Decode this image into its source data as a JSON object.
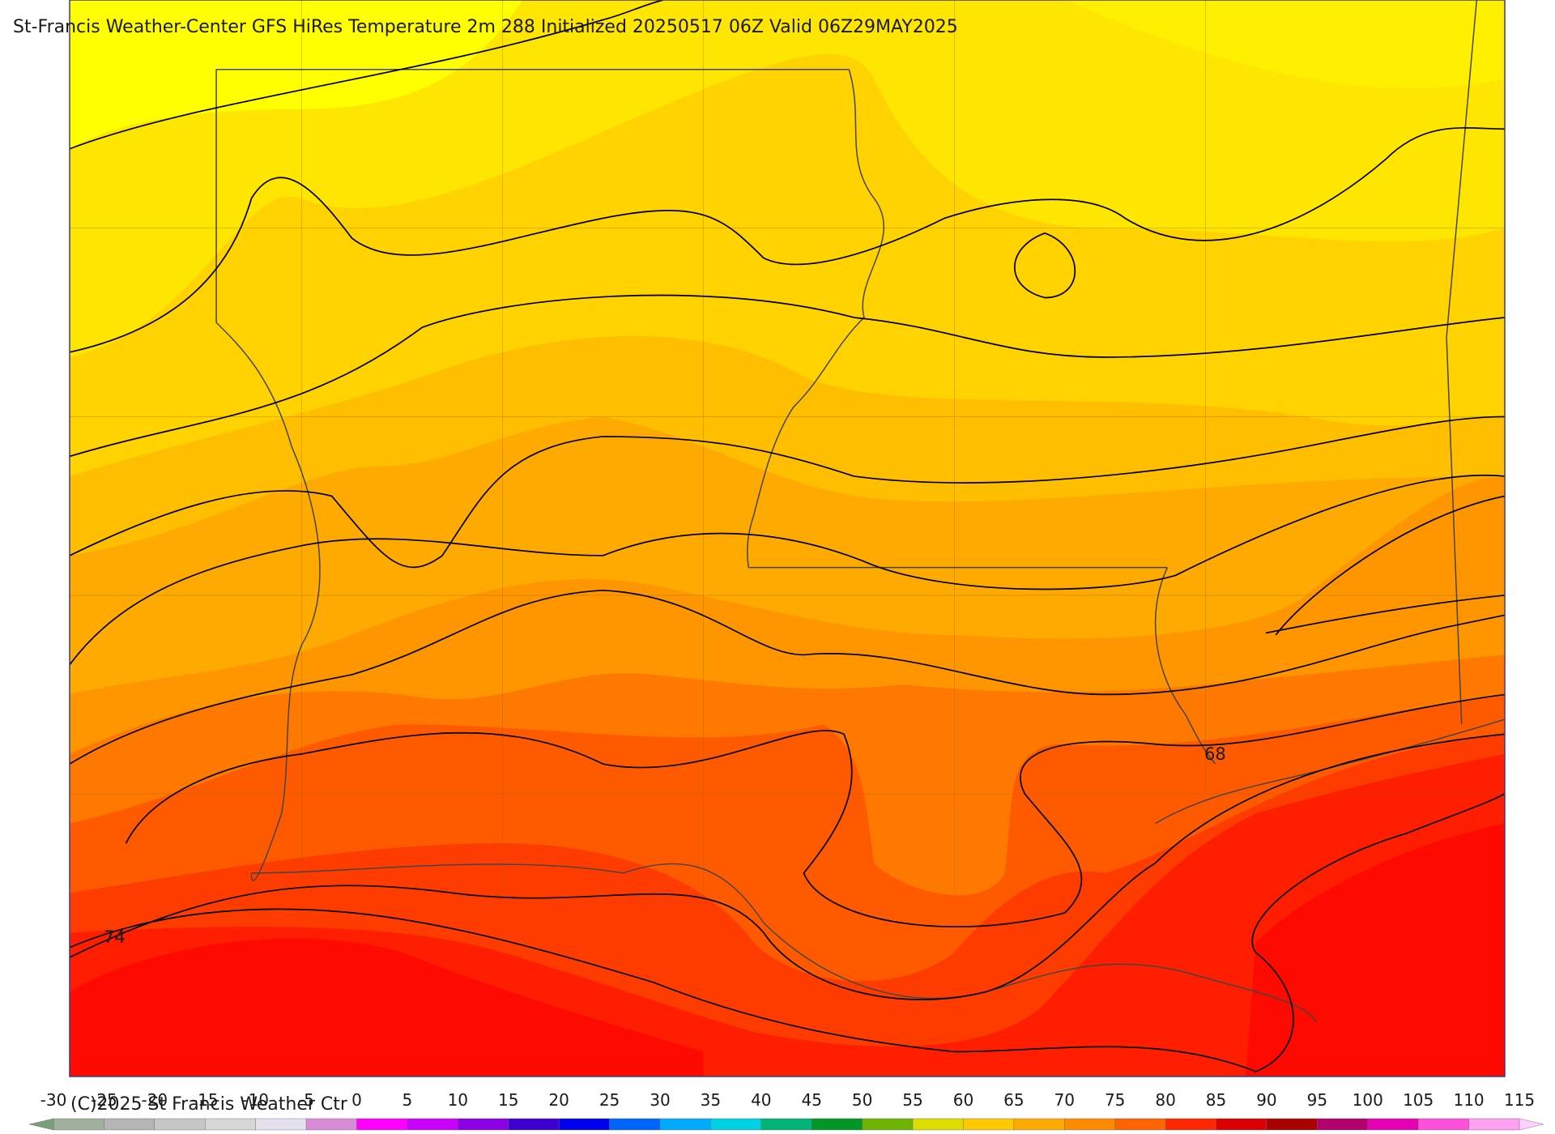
{
  "title": "St-Francis Weather-Center GFS HiRes Temperature 2m  288 Initialized 20250517 06Z Valid 06Z29MAY2025",
  "copyright": "(C)2025 St Francis Weather Ctr",
  "contour_labels": [
    68,
    74
  ],
  "colorbar": {
    "ticks": [
      -30,
      -25,
      -20,
      -15,
      -10,
      -5,
      0,
      5,
      10,
      15,
      20,
      25,
      30,
      35,
      40,
      45,
      50,
      55,
      60,
      65,
      70,
      75,
      80,
      85,
      90,
      95,
      100,
      105,
      110,
      115
    ],
    "colors": [
      "#9fb09f",
      "#b4b4b4",
      "#c6c6c6",
      "#d6d6d6",
      "#e4e0ee",
      "#d88cd8",
      "#ff00ff",
      "#c800ff",
      "#8c00e6",
      "#3c00d2",
      "#0000f0",
      "#0064ff",
      "#00aaff",
      "#00d2e6",
      "#00b478",
      "#009628",
      "#6eb400",
      "#dcdc00",
      "#ffc800",
      "#ffaa00",
      "#ff8c00",
      "#ff6400",
      "#ff2800",
      "#dc0000",
      "#aa0000",
      "#b4006e",
      "#e600b4",
      "#ff50dc",
      "#ffa0f0"
    ],
    "under_color": "#7aa07a",
    "over_color": "#ffd0ff"
  }
}
